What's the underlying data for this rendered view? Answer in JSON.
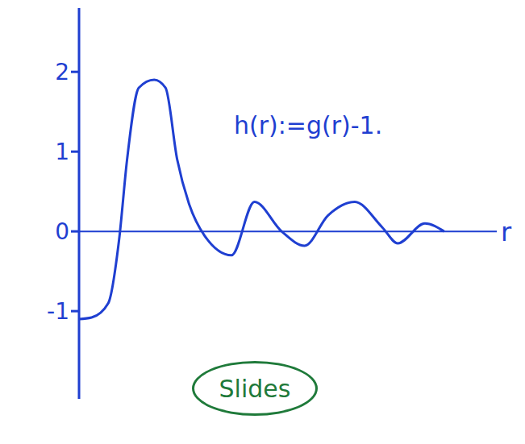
{
  "chart_data": {
    "type": "line",
    "title": "h(r):=g(r)-1.",
    "x_label": "r",
    "annotation": "Slides",
    "x": [
      0,
      0.3,
      0.7,
      0.96,
      1.15,
      1.43,
      1.8,
      2.07,
      2.35,
      2.63,
      3.0,
      3.65,
      4.2,
      4.85,
      5.4,
      5.96,
      6.6,
      7.26,
      7.63,
      8.28,
      8.74
    ],
    "values": [
      -1.1,
      -1.08,
      -0.9,
      -0.1,
      0.9,
      1.8,
      1.9,
      1.8,
      0.9,
      0.35,
      -0.05,
      -0.3,
      0.37,
      0.0,
      -0.18,
      0.2,
      0.37,
      0.05,
      -0.15,
      0.1,
      0.0
    ],
    "color": "#1f3fd1",
    "xlim": [
      0,
      10
    ],
    "ylim": [
      -2.1,
      2.8
    ],
    "yticks": [
      -1,
      0,
      1,
      2
    ],
    "tick_labels": "y",
    "marker": "none"
  }
}
